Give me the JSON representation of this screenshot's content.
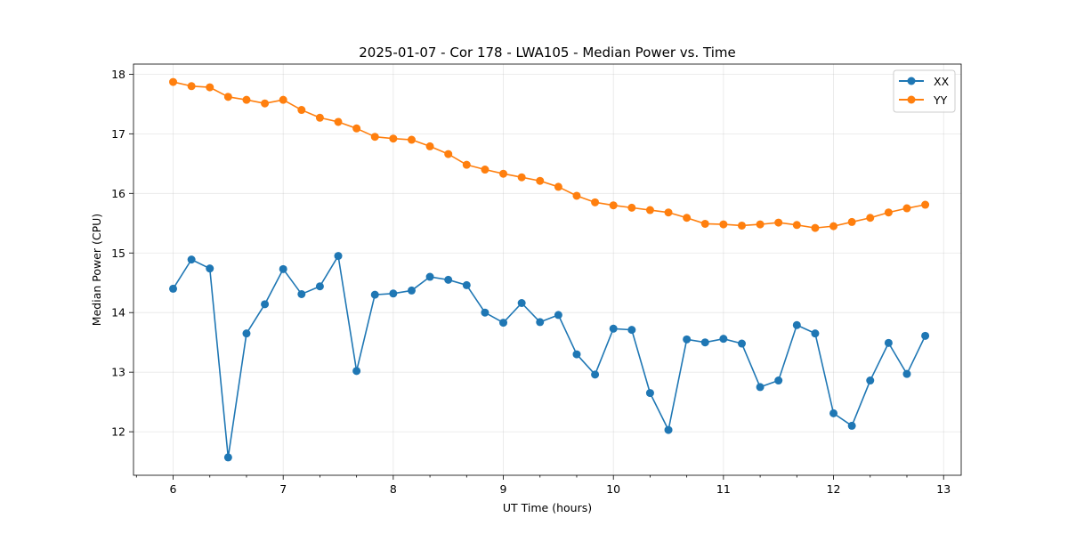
{
  "chart_data": {
    "type": "line",
    "title": "2025-01-07 - Cor 178 - LWA105 - Median Power vs. Time",
    "xlabel": "UT Time (hours)",
    "ylabel": "Median Power (CPU)",
    "xlim": [
      5.64,
      13.16
    ],
    "ylim": [
      11.27,
      18.17
    ],
    "xticks": [
      "6",
      "7",
      "8",
      "9",
      "10",
      "11",
      "12",
      "13"
    ],
    "yticks": [
      "12",
      "13",
      "14",
      "15",
      "16",
      "17",
      "18"
    ],
    "grid": true,
    "legend_position": "top-right",
    "x": [
      6.0,
      6.1667,
      6.3333,
      6.5,
      6.6667,
      6.8333,
      7.0,
      7.1667,
      7.3333,
      7.5,
      7.6667,
      7.8333,
      8.0,
      8.1667,
      8.3333,
      8.5,
      8.6667,
      8.8333,
      9.0,
      9.1667,
      9.3333,
      9.5,
      9.6667,
      9.8333,
      10.0,
      10.1667,
      10.3333,
      10.5,
      10.6667,
      10.8333,
      11.0,
      11.1667,
      11.3333,
      11.5,
      11.6667,
      11.8333,
      12.0,
      12.1667,
      12.3333,
      12.5,
      12.6667,
      12.8333
    ],
    "series": [
      {
        "name": "XX",
        "color": "#1f77b4",
        "values": [
          14.4,
          14.89,
          14.74,
          11.57,
          13.65,
          14.14,
          14.73,
          14.31,
          14.44,
          14.95,
          13.02,
          14.3,
          14.32,
          14.37,
          14.6,
          14.55,
          14.46,
          14.0,
          13.83,
          14.16,
          13.84,
          13.96,
          13.3,
          12.96,
          13.73,
          13.71,
          12.65,
          12.03,
          13.55,
          13.5,
          13.56,
          13.48,
          12.75,
          12.86,
          13.79,
          13.65,
          12.31,
          12.1,
          12.86,
          13.49,
          12.97,
          13.61
        ]
      },
      {
        "name": "YY",
        "color": "#ff7f0e",
        "values": [
          17.87,
          17.8,
          17.78,
          17.62,
          17.57,
          17.51,
          17.57,
          17.4,
          17.27,
          17.2,
          17.09,
          16.95,
          16.92,
          16.9,
          16.79,
          16.66,
          16.48,
          16.4,
          16.33,
          16.27,
          16.21,
          16.11,
          15.96,
          15.85,
          15.8,
          15.76,
          15.72,
          15.68,
          15.59,
          15.49,
          15.48,
          15.46,
          15.48,
          15.51,
          15.47,
          15.42,
          15.45,
          15.52,
          15.59,
          15.68,
          15.75,
          15.81
        ]
      }
    ]
  }
}
